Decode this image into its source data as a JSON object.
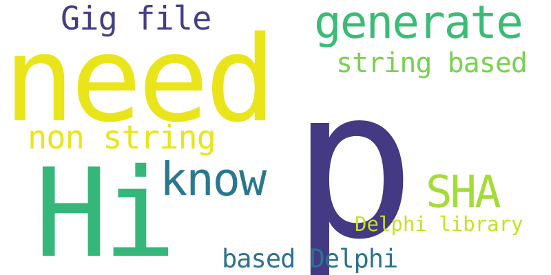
{
  "words": [
    {
      "key": "p",
      "text": "p",
      "color": "#443983"
    },
    {
      "key": "need",
      "text": "need",
      "color": "#EAE51A"
    },
    {
      "key": "hi",
      "text": "Hi",
      "color": "#35B779"
    },
    {
      "key": "know",
      "text": "know",
      "color": "#2A788E"
    },
    {
      "key": "generate",
      "text": "generate",
      "color": "#3BBB75"
    },
    {
      "key": "sha",
      "text": "SHA",
      "color": "#A5DB36"
    },
    {
      "key": "non_string",
      "text": "non string",
      "color": "#EAE51A"
    },
    {
      "key": "gig_file",
      "text": "Gig file",
      "color": "#433E85"
    },
    {
      "key": "string_based",
      "text": "string based",
      "color": "#7AD151"
    },
    {
      "key": "based_delphi",
      "text": "based Delphi",
      "color": "#2C728E"
    },
    {
      "key": "delphi_library",
      "text": "Delphi library",
      "color": "#C8E020"
    }
  ]
}
